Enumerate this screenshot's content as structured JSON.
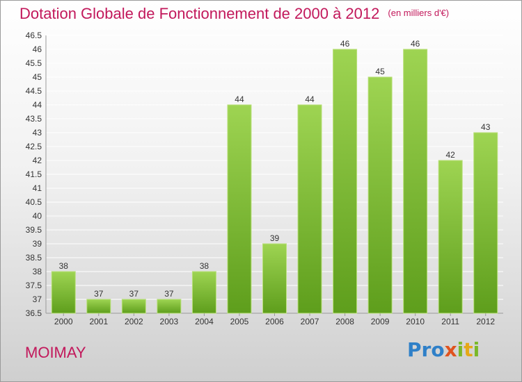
{
  "chart_data": {
    "type": "bar",
    "title": "Dotation Globale de Fonctionnement de 2000 à 2012",
    "subtitle": "(en milliers d'€)",
    "categories": [
      "2000",
      "2001",
      "2002",
      "2003",
      "2004",
      "2005",
      "2006",
      "2007",
      "2008",
      "2009",
      "2010",
      "2011",
      "2012"
    ],
    "values": [
      38,
      37,
      37,
      37,
      38,
      44,
      39,
      44,
      46,
      45,
      46,
      42,
      43
    ],
    "data_labels": [
      "38",
      "37",
      "37",
      "37",
      "38",
      "44",
      "39",
      "44",
      "46",
      "45",
      "46",
      "42",
      "43"
    ],
    "ylim": [
      36.5,
      46.5
    ],
    "yticks": [
      "36.5",
      "37",
      "37.5",
      "38",
      "38.5",
      "39",
      "39.5",
      "40",
      "40.5",
      "41",
      "41.5",
      "42",
      "42.5",
      "43",
      "43.5",
      "44",
      "44.5",
      "45",
      "45.5",
      "46",
      "46.5"
    ],
    "grid": true,
    "colors": {
      "bar_top": "#9ed452",
      "bar_bottom": "#5e9e1c",
      "grid": "#ffffff",
      "title": "#c2185b"
    }
  },
  "footer": {
    "commune": "MOIMAY",
    "logo_letters": [
      "P",
      "r",
      "o",
      "x",
      "i",
      "t",
      "i"
    ],
    "logo_colors": [
      "#2f80c8",
      "#2f80c8",
      "#2f80c8",
      "#e0531f",
      "#7ab829",
      "#e6a817",
      "#7ab829"
    ]
  }
}
